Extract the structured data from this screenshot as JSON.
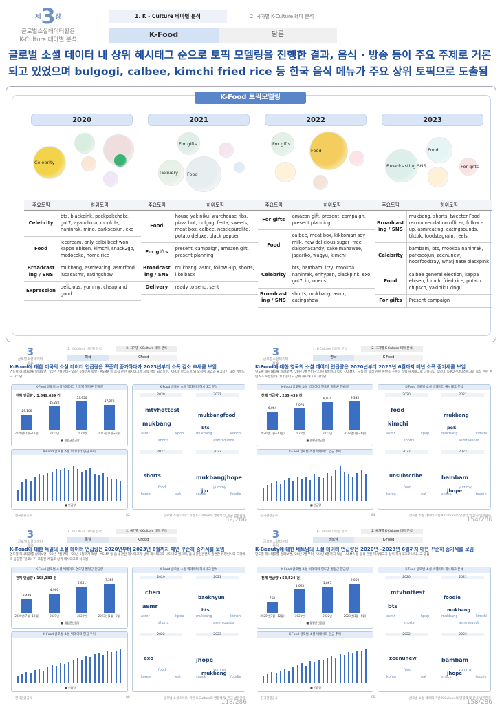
{
  "header": {
    "chapter_small": "제",
    "chapter_num": "3",
    "chapter_suffix": "장",
    "chapter_title_1": "글로벌소셜데이터활용",
    "chapter_title_2": "K-Culture 테마별 분석",
    "tab_active": "1. K - Culture 테마별 분석",
    "tab_other": "2. 국가별 K-Culture 테마 분석",
    "sub_active": "K-Food",
    "sub_other": "담론"
  },
  "headline": "글로벌 소셜 데이터 내 상위 해시태그 순으로 토픽 모델링을 진행한 결과, 음식 · 방송 등이 주요 주제로 거론되고 있었으며 bulgogi, calbee, kimchi fried rice 등 한국 음식 메뉴가 주요 상위 토픽으로 도출됨",
  "panel_title": "K-Food 토픽모델링",
  "table_headers": {
    "main": "주요토픽",
    "sub": "하위토픽"
  },
  "years": [
    {
      "year": "2020",
      "bubbles": [
        "Celebrity"
      ],
      "rows": [
        {
          "k": "Celebrity",
          "v": "bts, blackpink, peckpaltchoke, got7, ayauchida, mookda, naninrak, mino, parkseojun, exo"
        },
        {
          "k": "Food",
          "v": "icecream, only calbi beef won, kappa ebisen, kimchi, snack2go, mcdocoke, home rice"
        },
        {
          "k": "Broadcast ing / SNS",
          "v": "mukbang, asmreating, asmrfood lucasasmr, eatingshow"
        },
        {
          "k": "Expression",
          "v": "delicious, yummy, cheap and good"
        }
      ]
    },
    {
      "year": "2021",
      "bubbles": [
        "For gifts",
        "Delivery",
        "Food"
      ],
      "rows": [
        {
          "k": "Food",
          "v": "house yakiniku, warehouse ribs, pizza hut, bulgogi festa, sweets, meat box, calbee, nestlepurelife, potato deluxe, black pepper"
        },
        {
          "k": "For gifts",
          "v": "present, campaign, amazon gift, present planning"
        },
        {
          "k": "Broadcast ing / SNS",
          "v": "mukbang, asmr, follow -up, shorts, like back"
        },
        {
          "k": "Delivery",
          "v": "ready to send, sent"
        }
      ]
    },
    {
      "year": "2022",
      "bubbles": [
        "For gifts",
        "Food"
      ],
      "rows": [
        {
          "k": "For gifts",
          "v": "amazon gift, present, campaign, present planning"
        },
        {
          "k": "Food",
          "v": "calbee, meat box, kikkoman soy milk, new delicious sugar -free, dalgonacandy, cake mahawee, jagariko, wagyu, kimchi"
        },
        {
          "k": "Celebrity",
          "v": "bts, bambam, itzy, mookda naninrak, enhypen, blackpink, exo, got7, iu, oneus"
        },
        {
          "k": "Broadcast ing / SNS",
          "v": "shorts, mukbang, asmr, eatingshow"
        }
      ]
    },
    {
      "year": "2023",
      "bubbles": [
        "Broadcasting SNS",
        "Food",
        "For gifts"
      ],
      "rows": [
        {
          "k": "Broadcast ing / SNS",
          "v": "mukbang, shorts, tweeter Food recommendation officer, follow -up, asmreating, eatingsounds, tiktok, foodstagram, reels"
        },
        {
          "k": "Celebrity",
          "v": "bambam, bts, mookda naninrak, parkseojun, zeenunew, hobsfoodtray, whatjinate blackpink"
        },
        {
          "k": "Food",
          "v": "calbee general election, kappa ebisen, kimchi fried rice, potato chipsch, yakiniku kingu"
        },
        {
          "k": "For gifts",
          "v": "Present campaign"
        }
      ]
    }
  ],
  "quads": [
    {
      "country": "미국",
      "sub2": "K-Food",
      "headline": "K-Food에 대한 미국의 소셜 데이터 언급량은 꾸준히 증가하다가 2023년부터 소폭 감소 추세를 보임",
      "desc": "연도별 해시태그를 살펴보면, '20년 7월부터~'23년 6월까지 먹방 · ASMR 등 음식 관련 해시태그에 지속 평점 되었으며, K-POP 아티스트 와 요청이 게임과 물고나기 요리 키워드 도 나타남",
      "total": "전체 언급량 : 1,649,659 건",
      "bar_title": "K-Food 글로벌 소셜 빅데이터 연도별 월평균 언급량",
      "cats": [
        "2020년(7월~12월)",
        "2021년",
        "2022년",
        "2023년(1월~6월)"
      ],
      "vals": [
        29106,
        45222,
        53950,
        47078
      ],
      "val_labels": [
        "29,106",
        "45,222",
        "53,950",
        "47,078"
      ],
      "trend_title": "K-Food 글로벌 소셜 빅데이터 언급 추이",
      "wc_title": "K-Food 글로벌 소셜 빅데이터 해시태그 분석",
      "words": [
        "mtvhottest",
        "mukbangfood",
        "mukbang",
        "bts",
        "shorts",
        "mukbangjhope",
        "jin"
      ],
      "page": "82",
      "pages": "82/286"
    },
    {
      "country": "영국",
      "sub2": "K-Food",
      "headline": "K-Food에 대한 영국의 소셜 데이터 언급량은 2020년부터 2023년 6월까지 매년 소폭 증가세를 보임",
      "desc": "연도별 해시태그를 살펴보면, '20년 7월부터~'23년 6월까지 먹방 · ASMR · 구독 등 음식 관련 콘텐츠 꾸준히 상위 해시태그로 나타나고 있으며, K-POP 아티스트처럼 음식 관련 콘텐츠가 포함된 타 테마 용어도 상위 해시태그로 나타남",
      "total": "전체 언급량 : 285,439 건",
      "bar_title": "K-Food 글로벌 소셜 빅데이터 연도별 월평균 언급량",
      "cats": [
        "2020년(7월~12월)",
        "2021년",
        "2022년",
        "2023년(1월~6월)"
      ],
      "vals": [
        6064,
        7074,
        9074,
        9335
      ],
      "val_labels": [
        "6,064",
        "7,074",
        "9,074",
        "9,335"
      ],
      "trend_title": "K-Food 글로벌 소셜 빅데이터 언급 추이",
      "wc_title": "K-Food 글로벌 소셜 빅데이터 해시태그 분석",
      "words": [
        "food",
        "mukbang",
        "kimchi",
        "pek",
        "unsubscribe",
        "bambam",
        "jhope"
      ],
      "page": "84",
      "pages": "154/286"
    },
    {
      "country": "독일",
      "sub2": "K-Food",
      "headline": "K-Food에 대한 독일의 소셜 데이터 언급량은 2020년부터 2023년 6월까지 매년 꾸준히 증가세를 보임",
      "desc": "연도별 해시태그를 살펴보면, '20년 7월부터~'23년 6월까지 먹방 · ASMR 등 음식 관련 해시태그가 상위 해시태그로 나타나고 있으며, 음식 관련콘텐츠 출연한 유명인사와 드라마 속 등장한 '달고나'가 포함된 게임도 상위 해시태그로 나타남",
      "total": "전체 언급량 : 198,383 건",
      "bar_title": "K-Food 글로벌 소셜 빅데이터 연도별 월평균 언급량",
      "cats": [
        "2020년(7월~12월)",
        "2021년",
        "2022년",
        "2023년(1월~6월)"
      ],
      "vals": [
        3489,
        4906,
        6631,
        7365
      ],
      "val_labels": [
        "3,489",
        "4,906",
        "6,631",
        "7,365"
      ],
      "trend_title": "K-Food 글로벌 소셜 빅데이터 언급 추이",
      "wc_title": "K-Food 글로벌 소셜 빅데이터 해시태그 분석",
      "words": [
        "chen",
        "baekhyun",
        "asmr",
        "bts",
        "exo",
        "jhope",
        "mukbang"
      ],
      "page": "98",
      "pages": "118/286"
    },
    {
      "country": "베트남",
      "sub2": "K-Food",
      "headline": "K-Beauty에 대한 베트남의 소셜 데이터 언급량은 2020년~2023년 6월까지 매년 꾸준히 증가세를 보임",
      "desc": "연도별 해시태그를 살펴보면, '20년 7월부터~'23년 6월까지 먹방 · ASMR 등 음식 관련 해시태그가 상위 해시태그로 나타나고 있음",
      "total": "전체 언급량 : 58,524 건",
      "bar_title": "K-Food 글로벌 소셜 빅데이터 연도별 월평균 언급량",
      "cats": [
        "2020년(7월~12월)",
        "2021년",
        "2022년",
        "2023년(1월~6월)"
      ],
      "vals": [
        758,
        1663,
        1867,
        2050
      ],
      "val_labels": [
        "758",
        "1,663",
        "1,867",
        "2,050"
      ],
      "trend_title": "K-Food 글로벌 소셜 빅데이터 언급 추이",
      "wc_title": "K-Food 글로벌 소셜 빅데이터 해시태그 분석",
      "words": [
        "mtvhottest",
        "foodie",
        "bts",
        "mukbang",
        "zeenunew",
        "bambam",
        "jhope"
      ],
      "page": "98",
      "pages": "158/286"
    }
  ],
  "common": {
    "tab1": "1. K-Culture 테마별 분석",
    "tab2": "2. 국가별 K-Culture 테마 분석",
    "logo_top": "제",
    "logo_num": "3",
    "logo_l1": "글로벌소셜데이터활용",
    "logo_l2": "K-Culture 테마별 분석",
    "legend": "월평균언급량",
    "legend2": "언급량",
    "footer_org": "한국관광공사",
    "footer_doc": "글로벌 소셜 데이터 기반 K-Culture의 영향력 및 한국 방한관광 유도 방안 연구"
  }
}
